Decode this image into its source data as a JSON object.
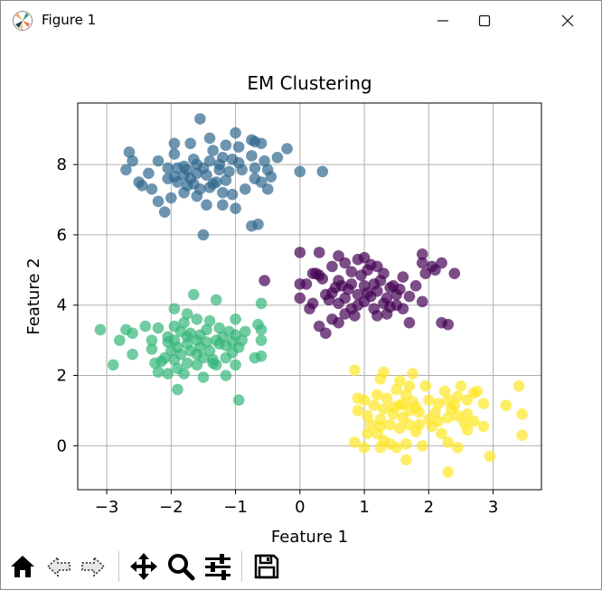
{
  "window": {
    "title": "Figure 1",
    "icons": {
      "app": "matplotlib-figure-icon",
      "minimize": "minimize-icon",
      "maximize": "maximize-icon",
      "close": "close-icon"
    }
  },
  "toolbar": {
    "buttons": [
      {
        "name": "home-button",
        "icon": "home-icon"
      },
      {
        "name": "back-button",
        "icon": "back-arrow-icon"
      },
      {
        "name": "forward-button",
        "icon": "forward-arrow-icon"
      },
      {
        "name": "pan-button",
        "icon": "move-icon"
      },
      {
        "name": "zoom-button",
        "icon": "zoom-icon"
      },
      {
        "name": "configure-subplots-button",
        "icon": "sliders-icon"
      },
      {
        "name": "save-button",
        "icon": "floppy-disk-icon"
      }
    ]
  },
  "chart_data": {
    "type": "scatter",
    "title": "EM Clustering",
    "xlabel": "Feature 1",
    "ylabel": "Feature 2",
    "xlim": [
      -3.45,
      3.75
    ],
    "ylim": [
      -1.25,
      9.75
    ],
    "xticks": [
      -3,
      -2,
      -1,
      0,
      1,
      2,
      3
    ],
    "yticks": [
      0,
      2,
      4,
      6,
      8
    ],
    "xtick_labels": [
      "−3",
      "−2",
      "−1",
      "0",
      "1",
      "2",
      "3"
    ],
    "ytick_labels": [
      "0",
      "2",
      "4",
      "6",
      "8"
    ],
    "grid": true,
    "legend": "none",
    "marker_alpha": 0.7,
    "series": [
      {
        "color": "#440154",
        "points": [
          [
            0.0,
            5.5
          ],
          [
            0.3,
            5.5
          ],
          [
            0.6,
            5.4
          ],
          [
            0.5,
            5.1
          ],
          [
            0.7,
            5.2
          ],
          [
            0.9,
            5.3
          ],
          [
            1.0,
            5.35
          ],
          [
            1.05,
            5.0
          ],
          [
            1.1,
            5.15
          ],
          [
            1.3,
            4.9
          ],
          [
            1.25,
            4.7
          ],
          [
            1.4,
            4.5
          ],
          [
            1.6,
            4.8
          ],
          [
            1.9,
            5.2
          ],
          [
            1.9,
            5.45
          ],
          [
            2.1,
            5.0
          ],
          [
            2.2,
            5.2
          ],
          [
            2.4,
            4.9
          ],
          [
            0.2,
            4.9
          ],
          [
            0.3,
            4.85
          ],
          [
            0.6,
            4.7
          ],
          [
            0.8,
            4.6
          ],
          [
            0.9,
            4.3
          ],
          [
            1.0,
            4.1
          ],
          [
            0.55,
            4.5
          ],
          [
            0.4,
            4.3
          ],
          [
            0.7,
            4.2
          ],
          [
            0.8,
            3.9
          ],
          [
            0.9,
            4.0
          ],
          [
            0.6,
            4.05
          ],
          [
            0.7,
            3.75
          ],
          [
            0.5,
            3.6
          ],
          [
            0.4,
            3.2
          ],
          [
            0.3,
            3.4
          ],
          [
            1.1,
            4.25
          ],
          [
            1.2,
            4.4
          ],
          [
            1.15,
            3.9
          ],
          [
            1.2,
            3.7
          ],
          [
            1.5,
            4.3
          ],
          [
            1.5,
            4.0
          ],
          [
            1.6,
            3.9
          ],
          [
            1.35,
            4.2
          ],
          [
            1.7,
            3.5
          ],
          [
            1.9,
            4.1
          ],
          [
            2.3,
            3.45
          ],
          [
            2.2,
            3.5
          ],
          [
            0.0,
            4.6
          ],
          [
            0.1,
            4.6
          ],
          [
            0.0,
            4.2
          ],
          [
            0.2,
            4.05
          ],
          [
            0.25,
            4.9
          ],
          [
            0.5,
            4.35
          ],
          [
            0.65,
            4.55
          ],
          [
            0.8,
            4.95
          ],
          [
            1.0,
            4.55
          ],
          [
            1.05,
            4.35
          ],
          [
            1.3,
            4.05
          ],
          [
            1.35,
            3.75
          ],
          [
            1.4,
            3.95
          ],
          [
            1.55,
            4.45
          ],
          [
            1.8,
            4.55
          ],
          [
            1.95,
            4.9
          ],
          [
            2.05,
            5.1
          ],
          [
            0.85,
            3.7
          ],
          [
            -0.55,
            4.7
          ],
          [
            0.35,
            4.75
          ],
          [
            0.45,
            4.15
          ],
          [
            0.75,
            4.45
          ],
          [
            0.95,
            4.85
          ],
          [
            1.15,
            4.6
          ],
          [
            1.45,
            4.55
          ],
          [
            1.7,
            4.25
          ],
          [
            1.2,
            5.1
          ],
          [
            0.15,
            3.9
          ],
          [
            0.6,
            3.5
          ]
        ]
      },
      {
        "color": "#31688e",
        "points": [
          [
            -1.55,
            9.3
          ],
          [
            -1.0,
            8.9
          ],
          [
            -0.75,
            8.7
          ],
          [
            -0.7,
            8.65
          ],
          [
            -1.95,
            8.6
          ],
          [
            -1.7,
            8.6
          ],
          [
            -1.4,
            8.75
          ],
          [
            -1.15,
            8.55
          ],
          [
            -1.35,
            8.4
          ],
          [
            -0.95,
            8.5
          ],
          [
            -0.6,
            8.6
          ],
          [
            -0.2,
            8.45
          ],
          [
            -2.65,
            8.35
          ],
          [
            -2.6,
            8.1
          ],
          [
            -2.7,
            7.85
          ],
          [
            -2.2,
            8.1
          ],
          [
            -1.95,
            8.3
          ],
          [
            -1.8,
            7.95
          ],
          [
            -1.6,
            8.0
          ],
          [
            -1.4,
            8.1
          ],
          [
            -1.2,
            8.2
          ],
          [
            -1.05,
            8.15
          ],
          [
            -0.75,
            8.25
          ],
          [
            -0.55,
            8.1
          ],
          [
            -0.35,
            8.2
          ],
          [
            -0.5,
            7.85
          ],
          [
            -0.7,
            7.9
          ],
          [
            -0.9,
            7.85
          ],
          [
            -1.1,
            7.8
          ],
          [
            -1.25,
            7.85
          ],
          [
            -1.45,
            7.7
          ],
          [
            -1.6,
            7.75
          ],
          [
            -1.8,
            7.7
          ],
          [
            -1.95,
            7.65
          ],
          [
            -2.05,
            7.6
          ],
          [
            -1.9,
            7.5
          ],
          [
            -1.75,
            7.4
          ],
          [
            -1.65,
            7.45
          ],
          [
            -1.55,
            7.3
          ],
          [
            -1.4,
            7.35
          ],
          [
            -1.3,
            7.5
          ],
          [
            -1.2,
            7.2
          ],
          [
            -1.05,
            7.15
          ],
          [
            -1.0,
            6.75
          ],
          [
            -1.2,
            6.85
          ],
          [
            -1.6,
            7.1
          ],
          [
            -1.8,
            7.2
          ],
          [
            -2.0,
            7.05
          ],
          [
            -2.2,
            6.95
          ],
          [
            -2.1,
            6.65
          ],
          [
            -2.45,
            7.4
          ],
          [
            -2.5,
            7.5
          ],
          [
            -2.3,
            7.3
          ],
          [
            -0.7,
            7.6
          ],
          [
            -0.6,
            7.5
          ],
          [
            -0.5,
            7.3
          ],
          [
            -0.65,
            6.3
          ],
          [
            -0.75,
            6.25
          ],
          [
            -1.5,
            6.0
          ],
          [
            0.35,
            7.8
          ],
          [
            0.0,
            7.8
          ],
          [
            -1.75,
            7.85
          ],
          [
            -1.9,
            7.9
          ],
          [
            -2.05,
            7.9
          ],
          [
            -1.5,
            7.9
          ],
          [
            -1.35,
            7.45
          ],
          [
            -1.15,
            7.55
          ],
          [
            -0.85,
            7.3
          ],
          [
            -1.25,
            8.0
          ],
          [
            -1.65,
            8.15
          ],
          [
            -0.45,
            7.65
          ],
          [
            -1.7,
            7.6
          ],
          [
            -1.45,
            6.85
          ],
          [
            -0.95,
            8.05
          ],
          [
            -2.35,
            7.75
          ]
        ]
      },
      {
        "color": "#35b779",
        "points": [
          [
            -1.65,
            4.3
          ],
          [
            -1.3,
            4.15
          ],
          [
            -0.6,
            4.05
          ],
          [
            -1.95,
            3.9
          ],
          [
            -1.75,
            3.75
          ],
          [
            -1.6,
            3.6
          ],
          [
            -1.4,
            3.55
          ],
          [
            -1.0,
            3.6
          ],
          [
            -2.4,
            3.4
          ],
          [
            -2.6,
            3.2
          ],
          [
            -2.7,
            3.3
          ],
          [
            -3.1,
            3.3
          ],
          [
            -2.8,
            3.0
          ],
          [
            -2.2,
            3.35
          ],
          [
            -1.95,
            3.4
          ],
          [
            -1.85,
            3.25
          ],
          [
            -1.75,
            3.1
          ],
          [
            -1.6,
            3.0
          ],
          [
            -1.55,
            2.8
          ],
          [
            -1.75,
            2.9
          ],
          [
            -1.9,
            2.8
          ],
          [
            -2.0,
            2.7
          ],
          [
            -2.1,
            2.5
          ],
          [
            -2.15,
            2.4
          ],
          [
            -2.2,
            2.1
          ],
          [
            -2.05,
            2.05
          ],
          [
            -1.9,
            2.2
          ],
          [
            -1.75,
            2.35
          ],
          [
            -1.6,
            2.3
          ],
          [
            -1.5,
            2.5
          ],
          [
            -1.4,
            2.7
          ],
          [
            -1.3,
            3.0
          ],
          [
            -1.2,
            3.1
          ],
          [
            -1.1,
            3.25
          ],
          [
            -1.0,
            3.15
          ],
          [
            -0.9,
            3.0
          ],
          [
            -0.95,
            2.8
          ],
          [
            -1.05,
            2.65
          ],
          [
            -1.15,
            2.5
          ],
          [
            -1.3,
            2.3
          ],
          [
            -1.35,
            2.35
          ],
          [
            -1.0,
            2.3
          ],
          [
            -1.8,
            2.05
          ],
          [
            -1.9,
            1.6
          ],
          [
            -1.5,
            1.95
          ],
          [
            -1.15,
            2.0
          ],
          [
            -0.95,
            1.3
          ],
          [
            -0.6,
            2.55
          ],
          [
            -0.7,
            2.5
          ],
          [
            -0.6,
            3.0
          ],
          [
            -0.6,
            3.3
          ],
          [
            -0.65,
            3.45
          ],
          [
            -2.6,
            2.6
          ],
          [
            -2.9,
            2.3
          ],
          [
            -2.3,
            2.75
          ],
          [
            -2.3,
            3.0
          ],
          [
            -1.95,
            3.0
          ],
          [
            -1.7,
            2.7
          ],
          [
            -1.8,
            3.5
          ],
          [
            -1.25,
            2.9
          ],
          [
            -2.05,
            3.1
          ],
          [
            -1.45,
            3.3
          ],
          [
            -1.05,
            2.95
          ],
          [
            -1.7,
            3.2
          ],
          [
            -2.25,
            2.35
          ],
          [
            -1.55,
            3.15
          ],
          [
            -1.95,
            2.45
          ],
          [
            -0.85,
            3.25
          ],
          [
            -1.6,
            2.6
          ],
          [
            -1.25,
            3.35
          ],
          [
            -2.05,
            2.95
          ],
          [
            -1.85,
            2.6
          ],
          [
            -1.15,
            2.85
          ],
          [
            -1.45,
            2.95
          ],
          [
            -1.35,
            2.45
          ]
        ]
      },
      {
        "color": "#fde725",
        "points": [
          [
            0.85,
            2.15
          ],
          [
            1.3,
            2.1
          ],
          [
            1.75,
            2.05
          ],
          [
            1.25,
            1.9
          ],
          [
            1.55,
            1.85
          ],
          [
            1.5,
            1.6
          ],
          [
            1.65,
            1.45
          ],
          [
            1.2,
            1.45
          ],
          [
            1.0,
            1.3
          ],
          [
            1.15,
            1.15
          ],
          [
            1.3,
            1.05
          ],
          [
            1.45,
            1.1
          ],
          [
            1.6,
            1.2
          ],
          [
            1.8,
            1.1
          ],
          [
            1.7,
            1.0
          ],
          [
            1.85,
            0.95
          ],
          [
            2.0,
            1.3
          ],
          [
            2.15,
            1.2
          ],
          [
            2.3,
            1.3
          ],
          [
            2.25,
            1.55
          ],
          [
            2.45,
            1.4
          ],
          [
            2.4,
            1.15
          ],
          [
            2.6,
            1.3
          ],
          [
            2.7,
            1.5
          ],
          [
            2.75,
            1.55
          ],
          [
            2.6,
            0.9
          ],
          [
            2.45,
            0.85
          ],
          [
            2.3,
            0.8
          ],
          [
            2.15,
            0.7
          ],
          [
            2.0,
            0.75
          ],
          [
            1.85,
            0.6
          ],
          [
            1.7,
            0.6
          ],
          [
            1.55,
            0.5
          ],
          [
            1.4,
            0.6
          ],
          [
            1.25,
            0.55
          ],
          [
            1.1,
            0.6
          ],
          [
            0.9,
            1.0
          ],
          [
            1.05,
            0.85
          ],
          [
            1.25,
            0.75
          ],
          [
            1.45,
            0.9
          ],
          [
            1.6,
            0.8
          ],
          [
            1.8,
            0.4
          ],
          [
            1.9,
            0.0
          ],
          [
            1.65,
            0.05
          ],
          [
            1.5,
            -0.05
          ],
          [
            1.4,
            0.05
          ],
          [
            1.3,
            0.15
          ],
          [
            1.25,
            -0.05
          ],
          [
            0.85,
            0.1
          ],
          [
            1.0,
            -0.05
          ],
          [
            1.65,
            -0.4
          ],
          [
            2.3,
            0.1
          ],
          [
            2.45,
            -0.05
          ],
          [
            2.3,
            -0.75
          ],
          [
            2.95,
            -0.3
          ],
          [
            3.2,
            1.15
          ],
          [
            3.4,
            1.7
          ],
          [
            3.45,
            0.9
          ],
          [
            3.45,
            0.3
          ],
          [
            2.85,
            1.2
          ],
          [
            2.7,
            0.7
          ],
          [
            2.55,
            0.65
          ],
          [
            2.1,
            0.95
          ],
          [
            1.95,
            1.7
          ],
          [
            2.05,
            0.55
          ],
          [
            1.2,
            0.35
          ],
          [
            2.5,
            1.7
          ],
          [
            1.75,
            1.25
          ],
          [
            1.55,
            1.15
          ],
          [
            2.35,
            1.05
          ],
          [
            1.35,
            1.35
          ],
          [
            2.6,
            0.45
          ],
          [
            2.2,
            0.35
          ],
          [
            1.05,
            0.35
          ],
          [
            0.9,
            1.35
          ],
          [
            2.85,
            0.55
          ],
          [
            1.7,
            1.7
          ]
        ]
      }
    ]
  }
}
